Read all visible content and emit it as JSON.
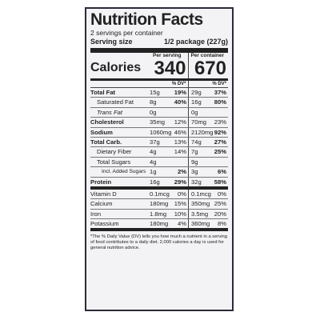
{
  "label": {
    "title": "Nutrition Facts",
    "servings_per_container": "2 servings per container",
    "serving_size_label": "Serving size",
    "serving_size_value": "1/2 package (227g)",
    "calories_label": "Calories",
    "per_serving_header": "Per serving",
    "per_container_header": "Per container",
    "calories_per_serving": "340",
    "calories_per_container": "670",
    "dv_header_serving": "% DV*",
    "dv_header_container": "% DV*",
    "nutrients": [
      {
        "name": "Total Fat",
        "serving_amount": "15g",
        "serving_dv": "19%",
        "container_amount": "29g",
        "container_dv": "37%"
      },
      {
        "name": "Saturated Fat",
        "serving_amount": "8g",
        "serving_dv": "40%",
        "container_amount": "16g",
        "container_dv": "80%"
      },
      {
        "name": "Trans Fat",
        "serving_amount": "0g",
        "serving_dv": "",
        "container_amount": "0g",
        "container_dv": ""
      },
      {
        "name": "Cholesterol",
        "serving_amount": "35mg",
        "serving_dv": "12%",
        "container_amount": "70mg",
        "container_dv": "23%"
      },
      {
        "name": "Sodium",
        "serving_amount": "1060mg",
        "serving_dv": "46%",
        "container_amount": "2120mg",
        "container_dv": "92%"
      },
      {
        "name": "Total Carb.",
        "serving_amount": "37g",
        "serving_dv": "13%",
        "container_amount": "74g",
        "container_dv": "27%"
      },
      {
        "name": "Dietary Fiber",
        "serving_amount": "4g",
        "serving_dv": "14%",
        "container_amount": "7g",
        "container_dv": "25%"
      },
      {
        "name": "Total Sugars",
        "serving_amount": "4g",
        "serving_dv": "",
        "container_amount": "9g",
        "container_dv": ""
      },
      {
        "name": "Incl. Added Sugars",
        "serving_amount": "1g",
        "serving_dv": "2%",
        "container_amount": "3g",
        "container_dv": "6%"
      },
      {
        "name": "Protein",
        "serving_amount": "16g",
        "serving_dv": "29%",
        "container_amount": "32g",
        "container_dv": "58%"
      }
    ],
    "vitamins": [
      {
        "name": "Vitamin D",
        "serving_amount": "0.1mcg",
        "serving_dv": "0%",
        "container_amount": "0.1mcg",
        "container_dv": "0%"
      },
      {
        "name": "Calcium",
        "serving_amount": "180mg",
        "serving_dv": "15%",
        "container_amount": "350mg",
        "container_dv": "25%"
      },
      {
        "name": "Iron",
        "serving_amount": "1.8mg",
        "serving_dv": "10%",
        "container_amount": "3.5mg",
        "container_dv": "20%"
      },
      {
        "name": "Potassium",
        "serving_amount": "180mg",
        "serving_dv": "4%",
        "container_amount": "360mg",
        "container_dv": "8%"
      }
    ],
    "footnote": "*The % Daily Value (DV) tells you how much a nutrient in a serving of food contributes to a daily diet. 2,000 calories a day is used for general nutrition advice."
  }
}
